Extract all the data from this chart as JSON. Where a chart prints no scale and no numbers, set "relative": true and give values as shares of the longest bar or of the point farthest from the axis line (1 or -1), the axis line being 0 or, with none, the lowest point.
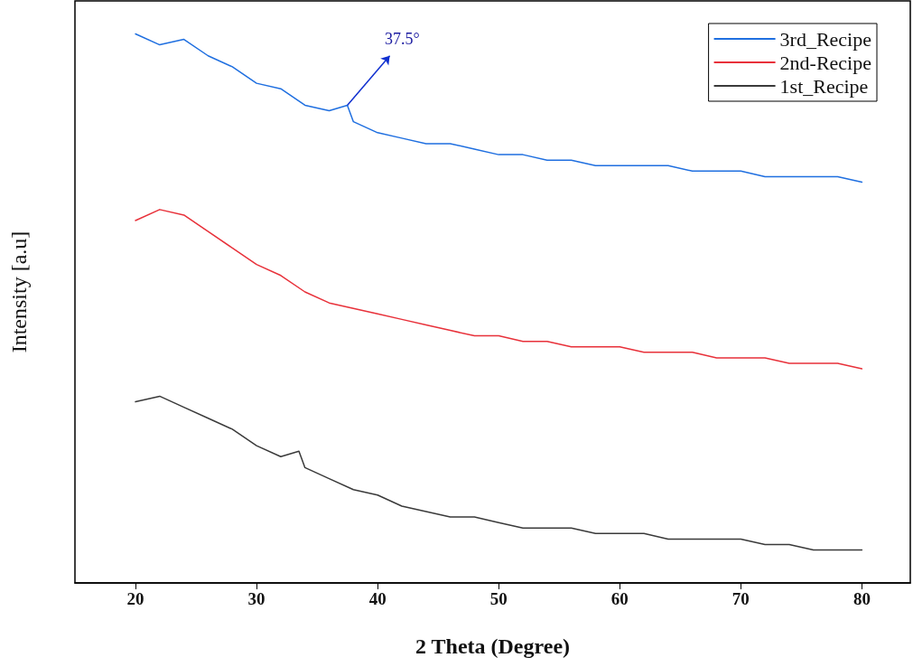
{
  "chart_data": {
    "type": "line",
    "relative": true,
    "xlabel": "2 Theta (Degree)",
    "ylabel": "Intensity [a.u]",
    "xlim": [
      15,
      84
    ],
    "xticks": [
      20,
      30,
      40,
      50,
      60,
      70,
      80
    ],
    "x": [
      20,
      22,
      24,
      26,
      28,
      30,
      32,
      34,
      36,
      38,
      40,
      42,
      44,
      46,
      48,
      50,
      52,
      54,
      56,
      58,
      60,
      62,
      64,
      66,
      68,
      70,
      72,
      74,
      76,
      78,
      80
    ],
    "series": [
      {
        "name": "3rd_Recipe",
        "color": "#1f6fe0",
        "x": [
          20,
          22,
          24,
          26,
          28,
          30,
          32,
          34,
          36,
          37.5,
          38,
          40,
          42,
          44,
          46,
          48,
          50,
          52,
          54,
          56,
          58,
          60,
          62,
          64,
          66,
          68,
          70,
          72,
          74,
          76,
          78,
          80
        ],
        "values": [
          1.0,
          0.98,
          0.99,
          0.96,
          0.94,
          0.91,
          0.9,
          0.87,
          0.86,
          0.87,
          0.84,
          0.82,
          0.81,
          0.8,
          0.8,
          0.79,
          0.78,
          0.78,
          0.77,
          0.77,
          0.76,
          0.76,
          0.76,
          0.76,
          0.75,
          0.75,
          0.75,
          0.74,
          0.74,
          0.74,
          0.74,
          0.73
        ]
      },
      {
        "name": "2nd-Recipe",
        "color": "#e8313a",
        "values": [
          0.66,
          0.68,
          0.67,
          0.64,
          0.61,
          0.58,
          0.56,
          0.53,
          0.51,
          0.5,
          0.49,
          0.48,
          0.47,
          0.46,
          0.45,
          0.45,
          0.44,
          0.44,
          0.43,
          0.43,
          0.43,
          0.42,
          0.42,
          0.42,
          0.41,
          0.41,
          0.41,
          0.4,
          0.4,
          0.4,
          0.39
        ]
      },
      {
        "name": "1st_Recipe",
        "color": "#3a3a3a",
        "x": [
          20,
          22,
          24,
          26,
          28,
          30,
          32,
          33.5,
          34,
          36,
          38,
          40,
          42,
          44,
          46,
          48,
          50,
          52,
          54,
          56,
          58,
          60,
          62,
          64,
          66,
          68,
          70,
          72,
          74,
          76,
          78,
          80
        ],
        "values": [
          0.33,
          0.34,
          0.32,
          0.3,
          0.28,
          0.25,
          0.23,
          0.24,
          0.21,
          0.19,
          0.17,
          0.16,
          0.14,
          0.13,
          0.12,
          0.12,
          0.11,
          0.1,
          0.1,
          0.1,
          0.09,
          0.09,
          0.09,
          0.08,
          0.08,
          0.08,
          0.08,
          0.07,
          0.07,
          0.06,
          0.06,
          0.06
        ]
      }
    ],
    "annotations": [
      {
        "text": "37.5°",
        "x": 37.5,
        "y": 0.87
      }
    ],
    "legend": "top right",
    "marker": "none",
    "line_style": "solid",
    "grid": false
  }
}
